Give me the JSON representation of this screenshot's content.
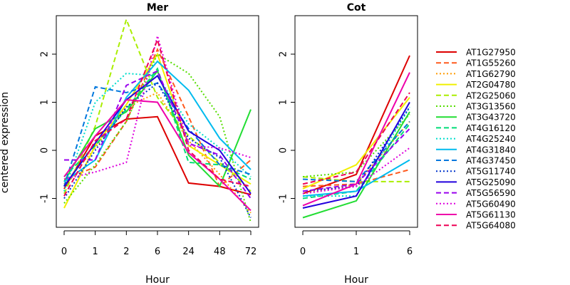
{
  "chart_data": {
    "type": "line",
    "ylabel": "centered expression",
    "ylim": [
      -1.6,
      2.8
    ],
    "y_ticks": [
      -1,
      0,
      1,
      2
    ],
    "legend_position": "right",
    "series": [
      {
        "name": "AT1G27950",
        "color": "#dd0000",
        "dash": "solid",
        "mer": [
          -0.8,
          0.3,
          0.65,
          0.7,
          -0.68,
          -0.75,
          -0.92
        ],
        "cot": [
          -0.9,
          -0.5,
          1.97
        ]
      },
      {
        "name": "AT1G55260",
        "color": "#ff5a1e",
        "dash": "dashed",
        "mer": [
          -0.6,
          -0.35,
          0.6,
          2.1,
          0.7,
          -0.75,
          -0.2
        ],
        "cot": [
          -0.75,
          -0.7,
          -0.4
        ]
      },
      {
        "name": "AT1G62790",
        "color": "#ff9b00",
        "dash": "dotted",
        "mer": [
          -0.7,
          0.05,
          0.9,
          1.2,
          0.2,
          -0.5,
          -1.3
        ],
        "cot": [
          -0.9,
          -0.7,
          0.6
        ]
      },
      {
        "name": "AT2G04780",
        "color": "#f0f000",
        "dash": "solid",
        "mer": [
          -1.2,
          0.1,
          0.95,
          2.0,
          0.1,
          -0.3,
          -0.7
        ],
        "cot": [
          -0.8,
          -0.3,
          1.1
        ]
      },
      {
        "name": "AT2G25060",
        "color": "#aaee00",
        "dash": "dashed",
        "mer": [
          -0.9,
          0.5,
          2.72,
          1.1,
          0.3,
          -0.25,
          -0.85
        ],
        "cot": [
          -0.55,
          -0.65,
          -0.65
        ]
      },
      {
        "name": "AT3G13560",
        "color": "#55dd00",
        "dash": "dotted",
        "mer": [
          -1.1,
          -0.3,
          0.6,
          2.0,
          1.6,
          0.7,
          -1.5
        ],
        "cot": [
          -0.55,
          -0.45,
          0.75
        ]
      },
      {
        "name": "AT3G43720",
        "color": "#22dd33",
        "dash": "solid",
        "mer": [
          -0.65,
          0.45,
          0.8,
          1.65,
          -0.1,
          -0.75,
          0.85
        ],
        "cot": [
          -1.4,
          -1.05,
          0.8
        ]
      },
      {
        "name": "AT4G16120",
        "color": "#00dd77",
        "dash": "dashed",
        "mer": [
          -0.55,
          0.1,
          0.85,
          1.7,
          -0.25,
          -0.3,
          -0.6
        ],
        "cot": [
          -1.0,
          -0.85,
          0.55
        ]
      },
      {
        "name": "AT4G25240",
        "color": "#00ddcc",
        "dash": "dotted",
        "mer": [
          -0.85,
          1.0,
          1.6,
          1.55,
          0.55,
          0.05,
          -0.55
        ],
        "cot": [
          -0.95,
          -0.95,
          0.9
        ]
      },
      {
        "name": "AT4G31840",
        "color": "#00bbee",
        "dash": "solid",
        "mer": [
          -0.65,
          -0.2,
          1.1,
          1.85,
          1.25,
          0.25,
          -0.4
        ],
        "cot": [
          -0.95,
          -0.85,
          -0.2
        ]
      },
      {
        "name": "AT4G37450",
        "color": "#0077dd",
        "dash": "dashed",
        "mer": [
          -0.75,
          1.32,
          1.2,
          1.4,
          0.45,
          -0.3,
          -0.5
        ],
        "cot": [
          -0.6,
          -0.65,
          0.6
        ]
      },
      {
        "name": "AT5G11740",
        "color": "#0033cc",
        "dash": "dotted",
        "mer": [
          -1.0,
          0.0,
          0.9,
          1.4,
          0.25,
          -0.15,
          -1.4
        ],
        "cot": [
          -0.85,
          -0.75,
          0.9
        ]
      },
      {
        "name": "AT5G25090",
        "color": "#2200dd",
        "dash": "solid",
        "mer": [
          -0.75,
          0.15,
          1.05,
          1.55,
          0.4,
          0.0,
          -0.9
        ],
        "cot": [
          -1.2,
          -0.95,
          1.0
        ]
      },
      {
        "name": "AT5G56590",
        "color": "#9900ee",
        "dash": "dashed",
        "mer": [
          -0.2,
          -0.2,
          1.35,
          1.65,
          0.15,
          -0.1,
          -1.0
        ],
        "cot": [
          -0.85,
          -0.7,
          0.45
        ]
      },
      {
        "name": "AT5G60490",
        "color": "#dd00dd",
        "dash": "dotted",
        "mer": [
          -0.6,
          -0.45,
          -0.25,
          2.38,
          0.1,
          0.05,
          -0.15
        ],
        "cot": [
          -0.9,
          -0.75,
          0.05
        ]
      },
      {
        "name": "AT5G61130",
        "color": "#ee00aa",
        "dash": "solid",
        "mer": [
          -0.55,
          0.3,
          1.05,
          1.0,
          -0.05,
          -0.6,
          -1.25
        ],
        "cot": [
          -1.15,
          -0.7,
          1.62
        ]
      },
      {
        "name": "AT5G64080",
        "color": "#ee0055",
        "dash": "dashed",
        "mer": [
          -0.95,
          0.2,
          0.65,
          2.3,
          0.0,
          -0.6,
          -0.75
        ],
        "cot": [
          -0.7,
          -0.45,
          1.2
        ]
      }
    ],
    "panels": [
      {
        "key": "mer",
        "title": "Mer",
        "xlabel": "Hour",
        "categories": [
          "0",
          "1",
          "2",
          "6",
          "24",
          "48",
          "72"
        ]
      },
      {
        "key": "cot",
        "title": "Cot",
        "xlabel": "Hour",
        "categories": [
          "0",
          "1",
          "6"
        ]
      }
    ]
  }
}
